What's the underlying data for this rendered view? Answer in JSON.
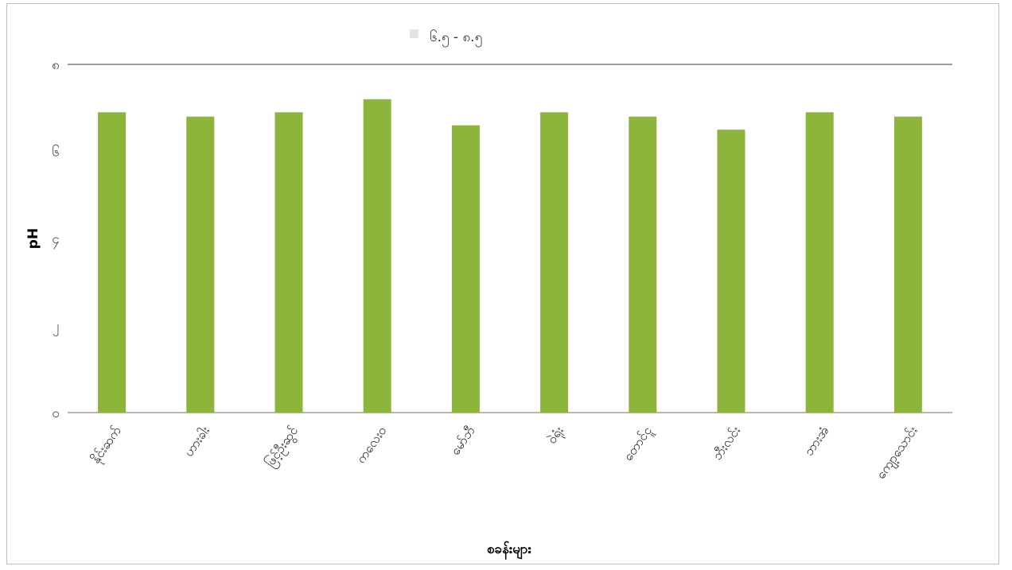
{
  "chart_data": {
    "type": "bar",
    "legend": {
      "placement": "top-center",
      "entries": [
        "၆.၅ - ၈.၅"
      ]
    },
    "categories": [
      "နိုင်းဆက်",
      "ဟားခါး",
      "ဖြင့်ဦးဆွင်",
      "ကလေးဝ",
      "မော်ဘီ",
      "ဝဲရုံး",
      "တောင်ငူ",
      "ဘီးလင်း",
      "ဘားအံ",
      "ကျော့သောင်း"
    ],
    "series": [
      {
        "name": "၆.၅ - ၈.၅",
        "values": [
          6.9,
          6.8,
          6.9,
          7.2,
          6.6,
          6.9,
          6.8,
          6.5,
          6.9,
          6.8
        ]
      }
    ],
    "ylim": [
      0,
      8
    ],
    "yticks": [
      0,
      2,
      4,
      6,
      8
    ],
    "ytick_labels": [
      "၀",
      "၂",
      "၄",
      "၆",
      "၈"
    ],
    "ylabel": "pH",
    "xlabel": "စခန်းများ",
    "grid": false,
    "colors": {
      "bar": "#8db53c",
      "legend_marker": "#e3e3e3",
      "axis": "#9e9e9e"
    }
  }
}
